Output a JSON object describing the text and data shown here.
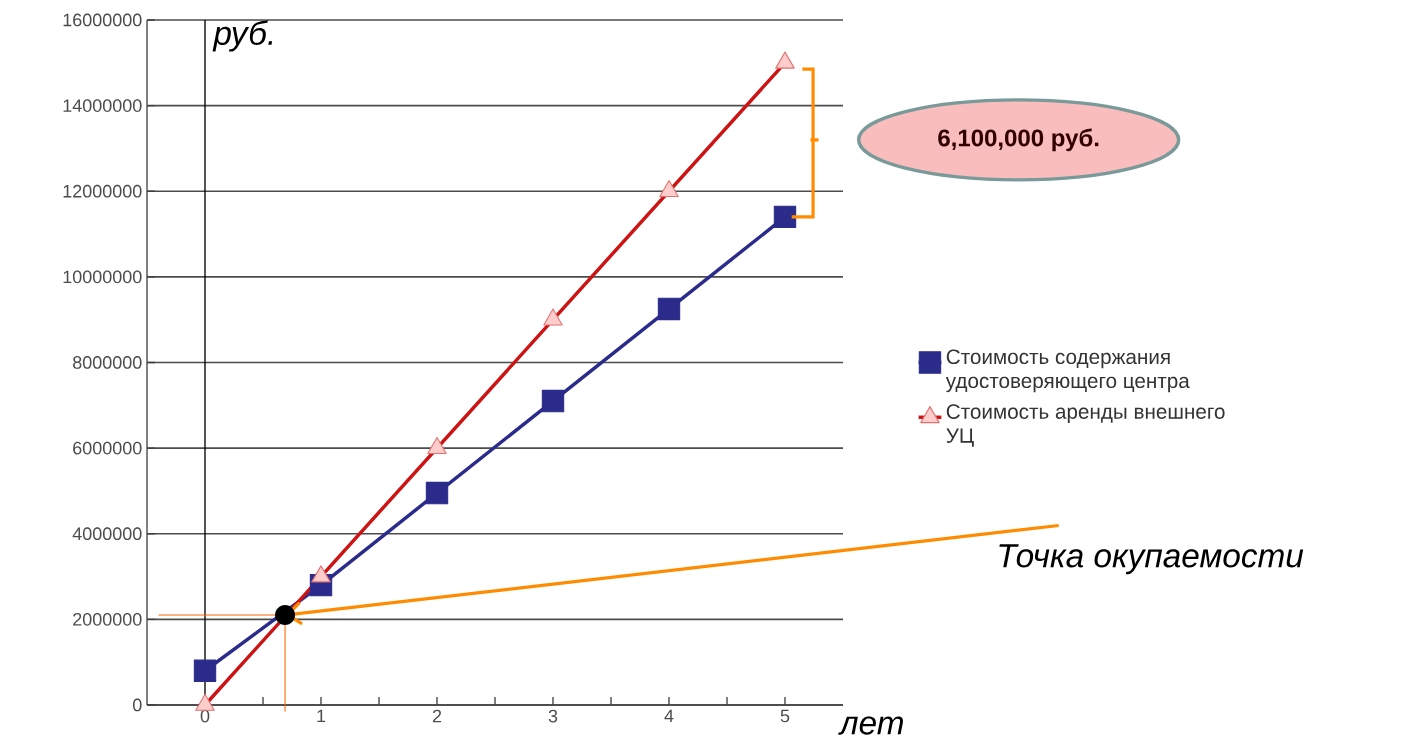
{
  "chart_data": {
    "type": "line",
    "x": [
      0,
      1,
      2,
      3,
      4,
      5
    ],
    "series": [
      {
        "name": "Стоимость содержания удостоверяющего центра",
        "color": "#2b2b8c",
        "marker": "square",
        "values": [
          800000,
          2800000,
          4950000,
          7100000,
          9250000,
          11400000
        ]
      },
      {
        "name": "Стоимость аренды внешнего УЦ",
        "color": "#cc1414",
        "marker": "triangle",
        "values": [
          0,
          3000000,
          6000000,
          9000000,
          12000000,
          15000000
        ]
      }
    ],
    "xlim": [
      -0.5,
      5.5
    ],
    "xticks": [
      0,
      1,
      2,
      3,
      4,
      5
    ],
    "ylim": [
      0,
      16000000
    ],
    "yticks": [
      0,
      2000000,
      4000000,
      6000000,
      8000000,
      10000000,
      12000000,
      14000000,
      16000000
    ],
    "grid": "y",
    "legend": "right",
    "ref_lines": [
      {
        "axis": "x",
        "value": 0,
        "color": "#000000"
      }
    ],
    "annotations": [
      "руб.",
      "лет",
      {
        "text": "Точка окупаемости",
        "x": 0.69,
        "y": 2100000
      },
      "6,100,000 руб."
    ]
  }
}
